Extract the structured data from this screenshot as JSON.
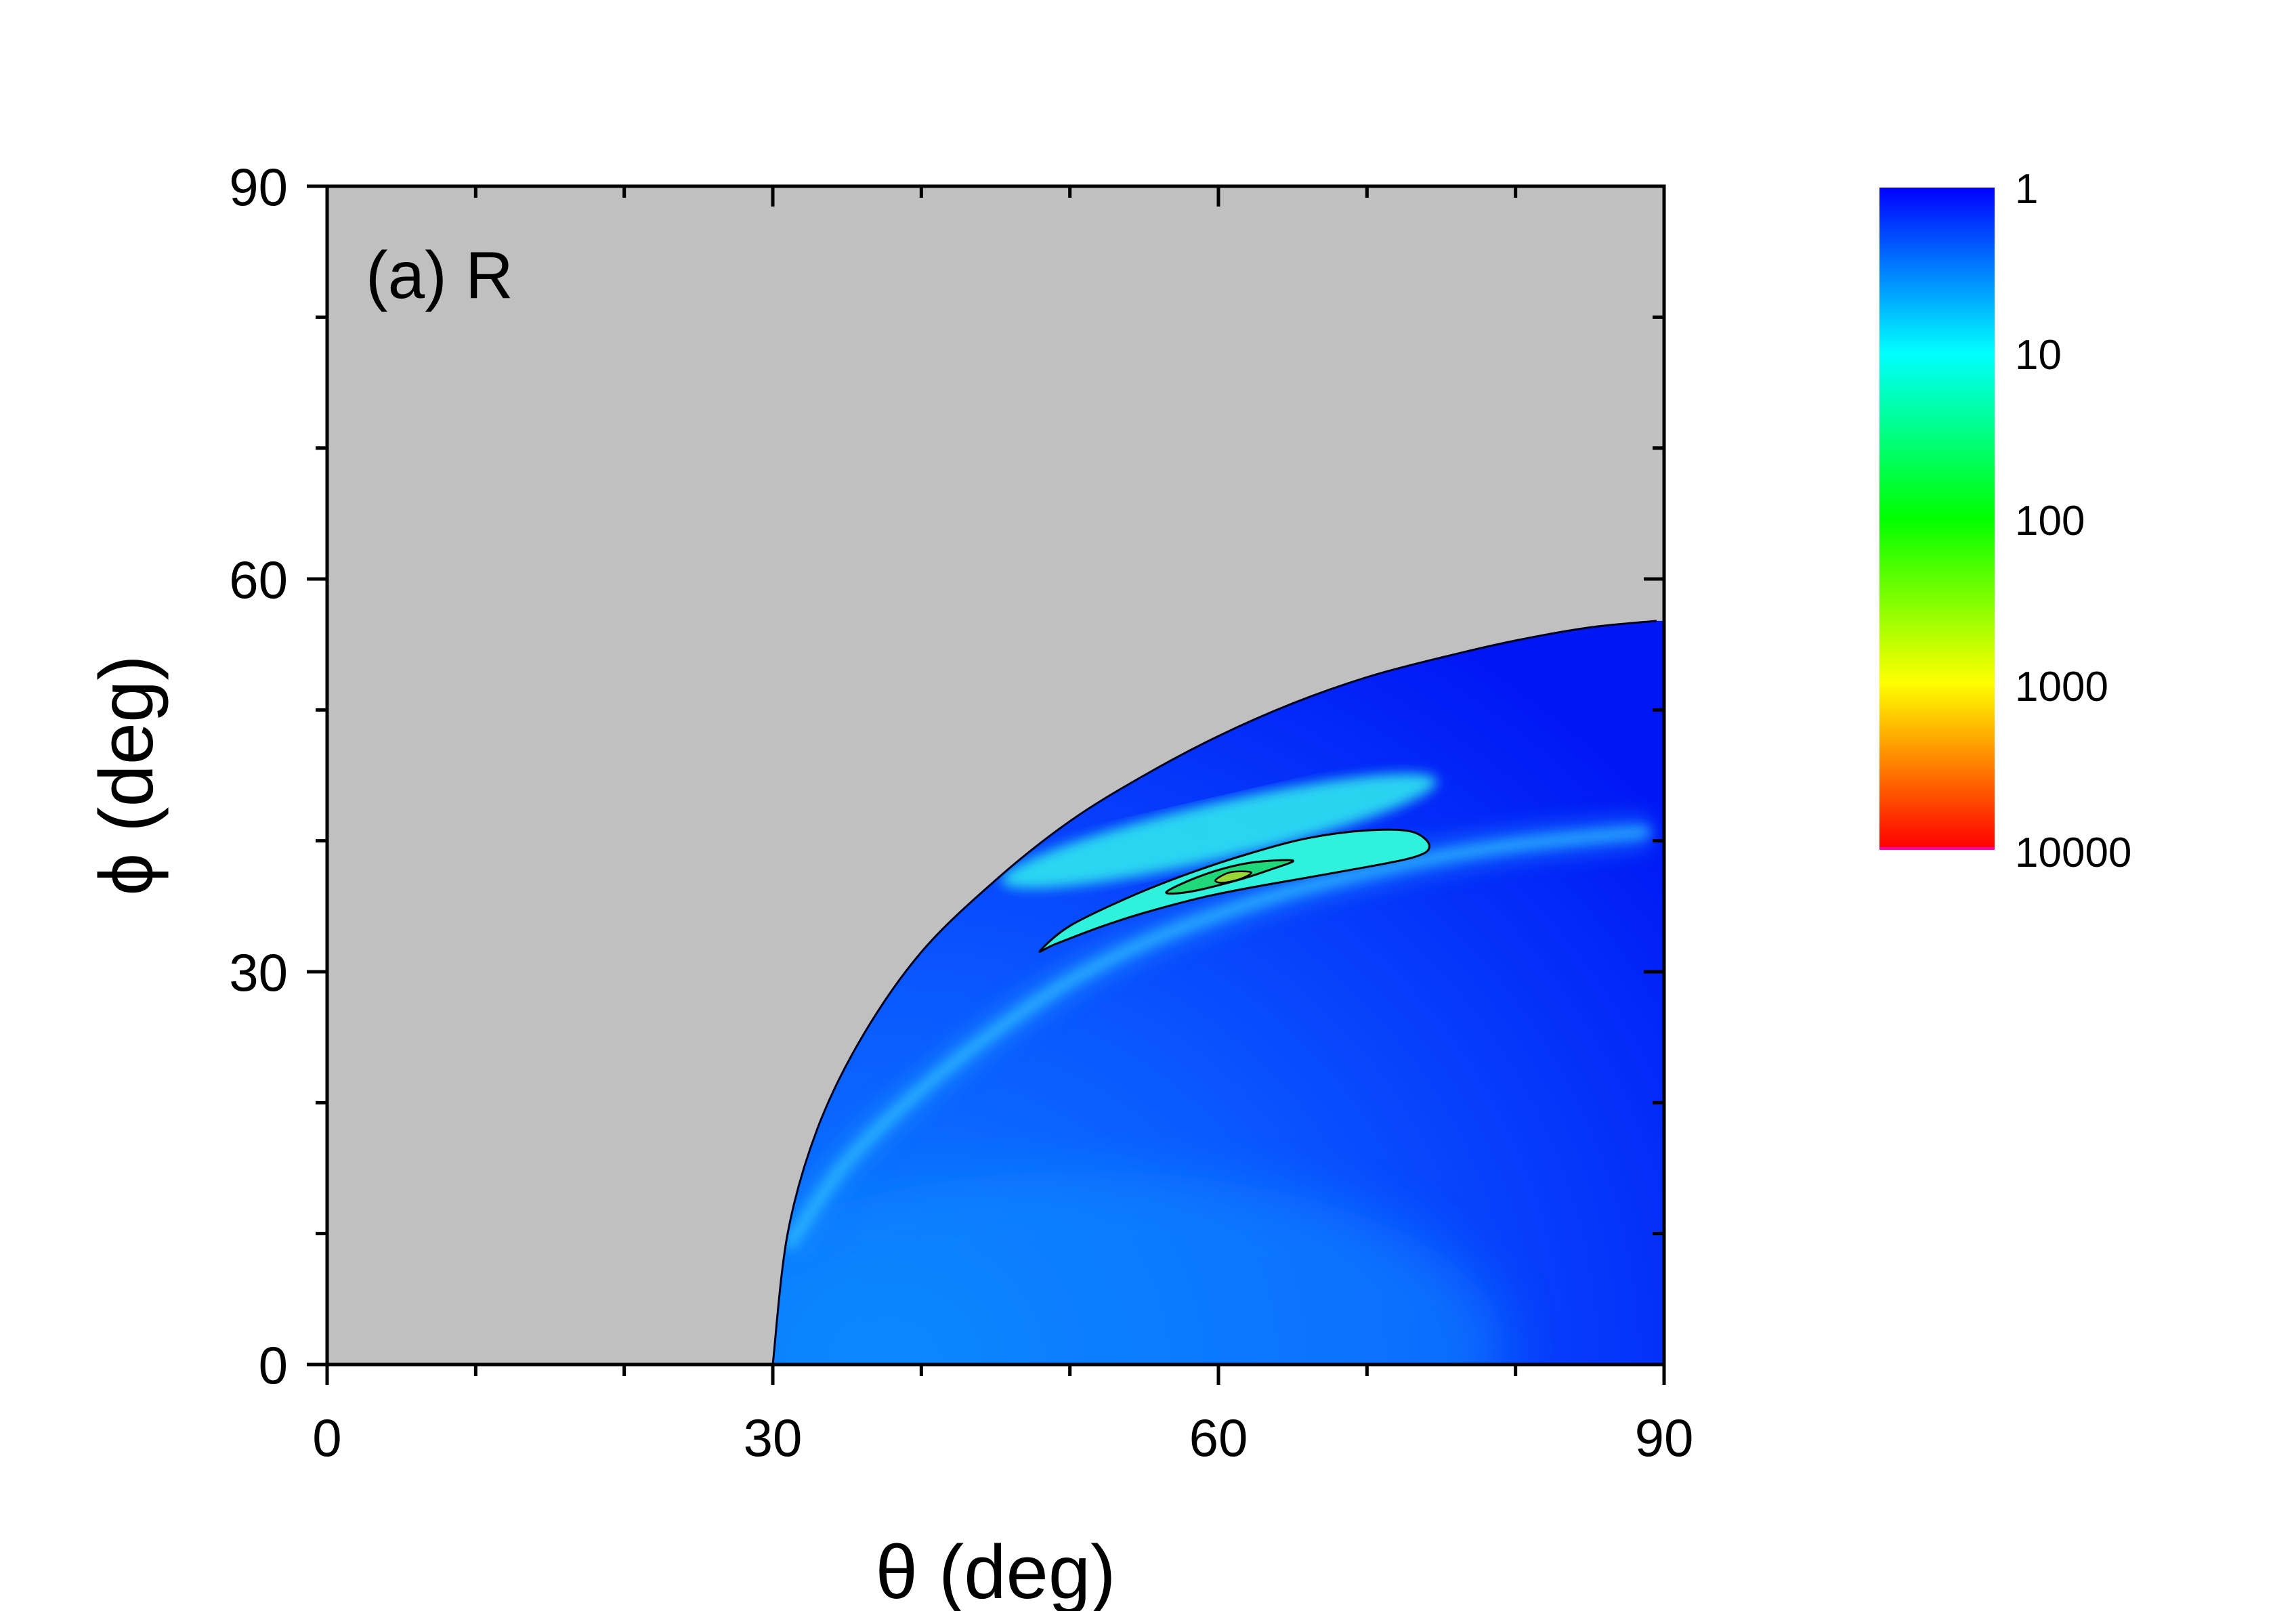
{
  "chart_data": {
    "type": "heatmap",
    "title": "",
    "panel_label": "(a) R",
    "xlabel": "θ (deg)",
    "ylabel": "ϕ (deg)",
    "xlim": [
      0,
      90
    ],
    "ylim": [
      0,
      90
    ],
    "x_ticks": [
      "0",
      "30",
      "60",
      "90"
    ],
    "y_ticks": [
      "0",
      "30",
      "60",
      "90"
    ],
    "x_tick_values": [
      0,
      30,
      60,
      90
    ],
    "y_tick_values": [
      0,
      30,
      60,
      90
    ],
    "x_minor_tick_values": [
      10,
      20,
      40,
      50,
      70,
      80
    ],
    "y_minor_tick_values": [
      10,
      20,
      40,
      50,
      70,
      80
    ],
    "background_color": "#c0c0c0",
    "colorscale": {
      "scale": "log",
      "range": [
        1,
        10000
      ],
      "tick_labels": [
        "1",
        "10",
        "100",
        "1000",
        "10000"
      ],
      "tick_values": [
        1,
        10,
        100,
        1000,
        10000
      ],
      "colors": [
        "#0000ff",
        "#00ffff",
        "#00ff00",
        "#ffff00",
        "#ff0000"
      ]
    },
    "region_boundary": {
      "description": "valid region lies below the curve; grey elsewhere",
      "theta": [
        30,
        31,
        33,
        36,
        40,
        45,
        50,
        55,
        60,
        65,
        70,
        75,
        80,
        85,
        89.5
      ],
      "phi": [
        0,
        10,
        18,
        25,
        31.5,
        37,
        41.5,
        45,
        48,
        50.5,
        52.5,
        54,
        55.3,
        56.3,
        56.8
      ]
    },
    "ridge": {
      "theta": [
        31,
        35,
        40,
        45,
        50,
        55,
        60,
        65,
        70,
        75,
        80,
        85,
        89
      ],
      "phi": [
        9,
        15.5,
        21,
        25.5,
        29.3,
        32.2,
        34.4,
        36.2,
        37.6,
        38.8,
        39.7,
        40.3,
        40.7
      ]
    },
    "contours": [
      {
        "level": 10,
        "theta": [
          48,
          50,
          54,
          58,
          62,
          66,
          70,
          73,
          74.2,
          73,
          68,
          63,
          59,
          55,
          52,
          49,
          48
        ],
        "phi": [
          31.6,
          33.5,
          35.7,
          37.5,
          39,
          40.2,
          40.8,
          40.7,
          39.6,
          38.7,
          37.6,
          36.6,
          35.7,
          34.5,
          33.4,
          32.1,
          31.6
        ]
      },
      {
        "level": 100,
        "theta": [
          56.5,
          59,
          62,
          65,
          63.5,
          61,
          58,
          56.5
        ],
        "phi": [
          36.1,
          37.4,
          38.3,
          38.5,
          37.8,
          36.9,
          36.1,
          36.1
        ]
      },
      {
        "level": 1000,
        "theta": [
          59.8,
          60.8,
          62.2,
          61.5,
          60.3,
          59.8
        ],
        "phi": [
          37.0,
          37.6,
          37.6,
          37.1,
          36.8,
          37.0
        ]
      }
    ]
  }
}
